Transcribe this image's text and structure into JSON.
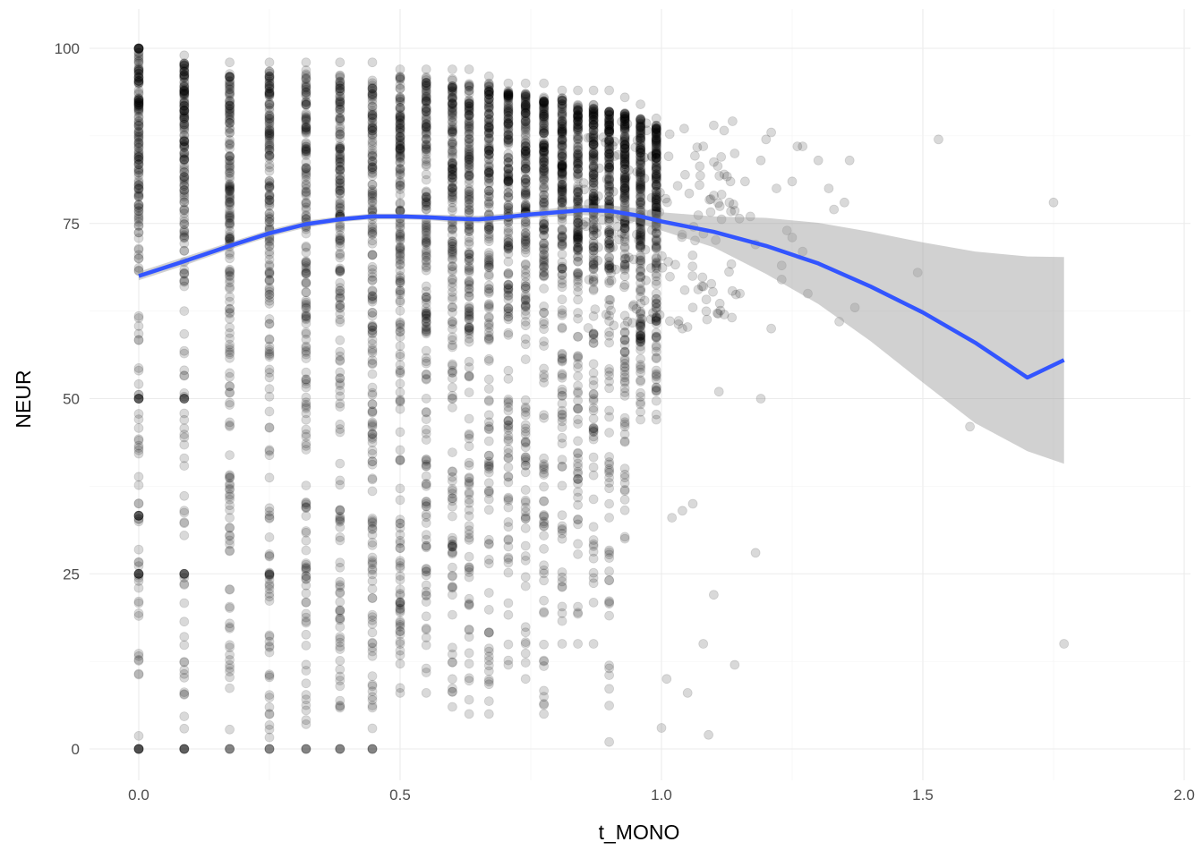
{
  "chart_data": {
    "type": "scatter",
    "title": "",
    "xlabel": "t_MONO",
    "ylabel": "NEUR",
    "xlim": [
      -0.1,
      2.02
    ],
    "ylim": [
      -5,
      103
    ],
    "x_ticks": [
      0.0,
      0.5,
      1.0,
      1.5,
      2.0
    ],
    "x_tick_labels": [
      "0.0",
      "0.5",
      "1.0",
      "1.5",
      "2.0"
    ],
    "y_ticks": [
      0,
      25,
      50,
      75,
      100
    ],
    "y_tick_labels": [
      "0",
      "25",
      "50",
      "75",
      "100"
    ],
    "grid": true,
    "legend": "none",
    "point_color": "#000000",
    "point_opacity": 0.15,
    "smooth_color": "#3355ff",
    "ribbon_color": "#999999",
    "columns": [
      {
        "x": 0.0,
        "ymin": 0,
        "ymax": 100,
        "denseMin": 55,
        "denseMax": 100
      },
      {
        "x": 0.087,
        "ymin": 0,
        "ymax": 99,
        "denseMin": 60,
        "denseMax": 98
      },
      {
        "x": 0.174,
        "ymin": 0,
        "ymax": 98,
        "denseMin": 42,
        "denseMax": 97
      },
      {
        "x": 0.25,
        "ymin": 0,
        "ymax": 98,
        "denseMin": 36,
        "denseMax": 97
      },
      {
        "x": 0.32,
        "ymin": 0,
        "ymax": 98,
        "denseMin": 36,
        "denseMax": 97
      },
      {
        "x": 0.385,
        "ymin": 0,
        "ymax": 98,
        "denseMin": 35,
        "denseMax": 97
      },
      {
        "x": 0.447,
        "ymin": 0,
        "ymax": 98,
        "denseMin": 33,
        "denseMax": 96
      },
      {
        "x": 0.5,
        "ymin": 8,
        "ymax": 97,
        "denseMin": 33,
        "denseMax": 96
      },
      {
        "x": 0.55,
        "ymin": 8,
        "ymax": 97,
        "denseMin": 42,
        "denseMax": 96
      },
      {
        "x": 0.6,
        "ymin": 6,
        "ymax": 97,
        "denseMin": 43,
        "denseMax": 96
      },
      {
        "x": 0.632,
        "ymin": 5,
        "ymax": 97,
        "denseMin": 45,
        "denseMax": 95
      },
      {
        "x": 0.67,
        "ymin": 5,
        "ymax": 96,
        "denseMin": 47,
        "denseMax": 95
      },
      {
        "x": 0.707,
        "ymin": 12,
        "ymax": 95,
        "denseMin": 50,
        "denseMax": 94
      },
      {
        "x": 0.74,
        "ymin": 10,
        "ymax": 95,
        "denseMin": 50,
        "denseMax": 94
      },
      {
        "x": 0.775,
        "ymin": 5,
        "ymax": 95,
        "denseMin": 55,
        "denseMax": 93
      },
      {
        "x": 0.81,
        "ymin": 15,
        "ymax": 94,
        "denseMin": 58,
        "denseMax": 93
      },
      {
        "x": 0.84,
        "ymin": 15,
        "ymax": 94,
        "denseMin": 60,
        "denseMax": 92
      },
      {
        "x": 0.87,
        "ymin": 15,
        "ymax": 94,
        "denseMin": 60,
        "denseMax": 92
      },
      {
        "x": 0.9,
        "ymin": 1,
        "ymax": 94,
        "denseMin": 62,
        "denseMax": 91
      },
      {
        "x": 0.93,
        "ymin": 30,
        "ymax": 93,
        "denseMin": 63,
        "denseMax": 91
      },
      {
        "x": 0.96,
        "ymin": 47,
        "ymax": 92,
        "denseMin": 63,
        "denseMax": 90
      },
      {
        "x": 0.99,
        "ymin": 47,
        "ymax": 90,
        "denseMin": 65,
        "denseMax": 89
      }
    ],
    "outliers": [
      {
        "x": 1.0,
        "y": 3
      },
      {
        "x": 1.01,
        "y": 10
      },
      {
        "x": 1.05,
        "y": 8
      },
      {
        "x": 1.04,
        "y": 34
      },
      {
        "x": 1.02,
        "y": 33
      },
      {
        "x": 1.06,
        "y": 35
      },
      {
        "x": 1.08,
        "y": 15
      },
      {
        "x": 1.09,
        "y": 2
      },
      {
        "x": 1.1,
        "y": 22
      },
      {
        "x": 1.11,
        "y": 51
      },
      {
        "x": 1.04,
        "y": 60
      },
      {
        "x": 1.06,
        "y": 63
      },
      {
        "x": 1.08,
        "y": 66
      },
      {
        "x": 1.12,
        "y": 62
      },
      {
        "x": 1.15,
        "y": 65
      },
      {
        "x": 1.17,
        "y": 76
      },
      {
        "x": 1.18,
        "y": 72
      },
      {
        "x": 1.16,
        "y": 81
      },
      {
        "x": 1.19,
        "y": 84
      },
      {
        "x": 1.2,
        "y": 87
      },
      {
        "x": 1.22,
        "y": 80
      },
      {
        "x": 1.24,
        "y": 74
      },
      {
        "x": 1.25,
        "y": 81
      },
      {
        "x": 1.14,
        "y": 12
      },
      {
        "x": 1.18,
        "y": 28
      },
      {
        "x": 1.19,
        "y": 50
      },
      {
        "x": 1.21,
        "y": 60
      },
      {
        "x": 1.23,
        "y": 67
      },
      {
        "x": 1.26,
        "y": 86
      },
      {
        "x": 1.27,
        "y": 86
      },
      {
        "x": 1.28,
        "y": 65
      },
      {
        "x": 1.3,
        "y": 84
      },
      {
        "x": 1.32,
        "y": 80
      },
      {
        "x": 1.33,
        "y": 77
      },
      {
        "x": 1.35,
        "y": 78
      },
      {
        "x": 1.34,
        "y": 61
      },
      {
        "x": 1.37,
        "y": 63
      },
      {
        "x": 1.36,
        "y": 84
      },
      {
        "x": 1.23,
        "y": 69
      },
      {
        "x": 1.27,
        "y": 71
      },
      {
        "x": 1.13,
        "y": 78
      },
      {
        "x": 1.1,
        "y": 89
      },
      {
        "x": 1.08,
        "y": 86
      },
      {
        "x": 1.12,
        "y": 82
      },
      {
        "x": 1.14,
        "y": 85
      },
      {
        "x": 1.21,
        "y": 88
      },
      {
        "x": 1.25,
        "y": 73
      },
      {
        "x": 1.49,
        "y": 68
      },
      {
        "x": 1.53,
        "y": 87
      },
      {
        "x": 1.59,
        "y": 46
      },
      {
        "x": 1.75,
        "y": 78
      },
      {
        "x": 1.77,
        "y": 15
      }
    ],
    "smooth_x": [
      0.0,
      0.087,
      0.174,
      0.25,
      0.32,
      0.385,
      0.447,
      0.5,
      0.55,
      0.6,
      0.65,
      0.7,
      0.75,
      0.8,
      0.85,
      0.9,
      0.95,
      1.0,
      1.1,
      1.2,
      1.3,
      1.4,
      1.5,
      1.6,
      1.7,
      1.77
    ],
    "smooth_y": [
      67.5,
      69.6,
      71.8,
      73.6,
      74.9,
      75.6,
      76.0,
      76.0,
      75.9,
      75.7,
      75.6,
      75.9,
      76.3,
      76.6,
      76.9,
      76.8,
      76.2,
      75.3,
      73.8,
      71.8,
      69.3,
      66.0,
      62.3,
      58.0,
      53.0,
      55.5
    ],
    "ribbon_upper": [
      68.1,
      70.2,
      72.3,
      74.1,
      75.4,
      76.0,
      76.4,
      76.4,
      76.3,
      76.2,
      76.1,
      76.4,
      76.8,
      77.2,
      77.6,
      77.6,
      77.2,
      76.6,
      76.0,
      75.8,
      75.1,
      73.8,
      72.3,
      71.0,
      70.3,
      70.2
    ],
    "ribbon_lower": [
      66.9,
      69.0,
      71.3,
      73.1,
      74.4,
      75.2,
      75.6,
      75.6,
      75.5,
      75.2,
      75.1,
      75.4,
      75.8,
      76.0,
      76.2,
      76.0,
      75.2,
      74.0,
      71.6,
      67.8,
      63.5,
      58.2,
      52.3,
      46.5,
      42.5,
      40.7
    ]
  }
}
